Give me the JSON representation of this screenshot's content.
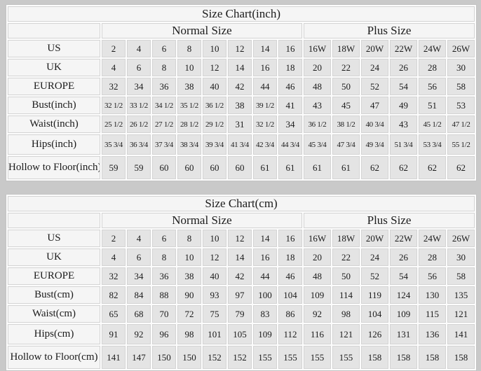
{
  "colors": {
    "page_background": "#c9c9c9",
    "header_cell_background": "#f5f5f5",
    "data_cell_background": "#e4e4e4",
    "table_border": "#c3c3c3",
    "text": "#1b1b1b"
  },
  "chart_data": [
    {
      "type": "table",
      "title": "Size Chart(inch)",
      "group_headers": {
        "normal": "Normal Size",
        "plus": "Plus Size"
      },
      "normal_col_count": 8,
      "plus_col_count": 6,
      "rows": [
        {
          "label": "US",
          "values": [
            "2",
            "4",
            "6",
            "8",
            "10",
            "12",
            "14",
            "16",
            "16W",
            "18W",
            "20W",
            "22W",
            "24W",
            "26W"
          ]
        },
        {
          "label": "UK",
          "values": [
            "4",
            "6",
            "8",
            "10",
            "12",
            "14",
            "16",
            "18",
            "20",
            "22",
            "24",
            "26",
            "28",
            "30"
          ]
        },
        {
          "label": "EUROPE",
          "values": [
            "32",
            "34",
            "36",
            "38",
            "40",
            "42",
            "44",
            "46",
            "48",
            "50",
            "52",
            "54",
            "56",
            "58"
          ]
        },
        {
          "label": "Bust(inch)",
          "values": [
            "32 1/2",
            "33 1/2",
            "34 1/2",
            "35 1/2",
            "36 1/2",
            "38",
            "39 1/2",
            "41",
            "43",
            "45",
            "47",
            "49",
            "51",
            "53"
          ]
        },
        {
          "label": "Waist(inch)",
          "values": [
            "25 1/2",
            "26 1/2",
            "27 1/2",
            "28 1/2",
            "29 1/2",
            "31",
            "32 1/2",
            "34",
            "36 1/2",
            "38 1/2",
            "40 3/4",
            "43",
            "45 1/2",
            "47 1/2"
          ]
        },
        {
          "label": "Hips(inch)",
          "values": [
            "35 3/4",
            "36 3/4",
            "37 3/4",
            "38 3/4",
            "39 3/4",
            "41 3/4",
            "42 3/4",
            "44 3/4",
            "45 3/4",
            "47 3/4",
            "49 3/4",
            "51 3/4",
            "53 3/4",
            "55 1/2"
          ]
        },
        {
          "label": "Hollow to Floor(inch)",
          "values": [
            "59",
            "59",
            "60",
            "60",
            "60",
            "60",
            "61",
            "61",
            "61",
            "61",
            "62",
            "62",
            "62",
            "62"
          ]
        }
      ]
    },
    {
      "type": "table",
      "title": "Size Chart(cm)",
      "group_headers": {
        "normal": "Normal Size",
        "plus": "Plus Size"
      },
      "normal_col_count": 8,
      "plus_col_count": 6,
      "rows": [
        {
          "label": "US",
          "values": [
            "2",
            "4",
            "6",
            "8",
            "10",
            "12",
            "14",
            "16",
            "16W",
            "18W",
            "20W",
            "22W",
            "24W",
            "26W"
          ]
        },
        {
          "label": "UK",
          "values": [
            "4",
            "6",
            "8",
            "10",
            "12",
            "14",
            "16",
            "18",
            "20",
            "22",
            "24",
            "26",
            "28",
            "30"
          ]
        },
        {
          "label": "EUROPE",
          "values": [
            "32",
            "34",
            "36",
            "38",
            "40",
            "42",
            "44",
            "46",
            "48",
            "50",
            "52",
            "54",
            "56",
            "58"
          ]
        },
        {
          "label": "Bust(cm)",
          "values": [
            "82",
            "84",
            "88",
            "90",
            "93",
            "97",
            "100",
            "104",
            "109",
            "114",
            "119",
            "124",
            "130",
            "135"
          ]
        },
        {
          "label": "Waist(cm)",
          "values": [
            "65",
            "68",
            "70",
            "72",
            "75",
            "79",
            "83",
            "86",
            "92",
            "98",
            "104",
            "109",
            "115",
            "121"
          ]
        },
        {
          "label": "Hips(cm)",
          "values": [
            "91",
            "92",
            "96",
            "98",
            "101",
            "105",
            "109",
            "112",
            "116",
            "121",
            "126",
            "131",
            "136",
            "141"
          ]
        },
        {
          "label": "Hollow to Floor(cm)",
          "values": [
            "141",
            "147",
            "150",
            "150",
            "152",
            "152",
            "155",
            "155",
            "155",
            "155",
            "158",
            "158",
            "158",
            "158"
          ]
        }
      ]
    }
  ]
}
